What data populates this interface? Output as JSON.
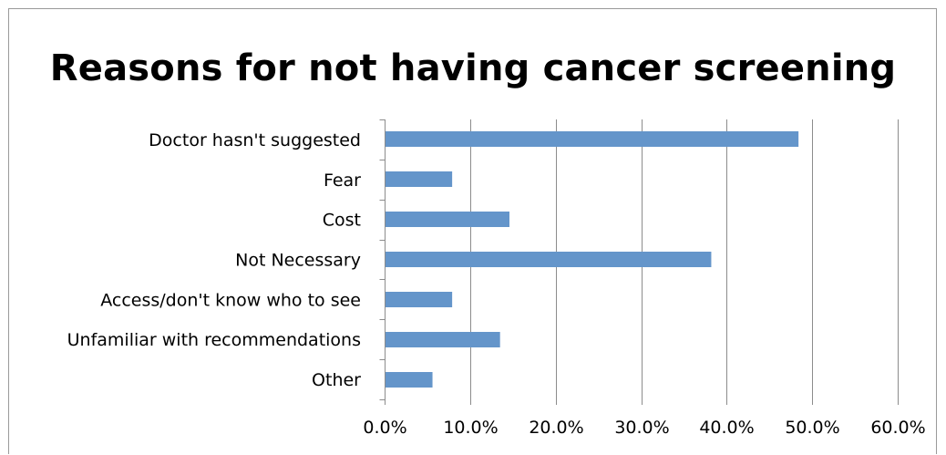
{
  "chart_data": {
    "type": "bar",
    "orientation": "horizontal",
    "title": "Reasons for not having cancer screening",
    "categories": [
      "Doctor hasn't suggested",
      "Fear",
      "Cost",
      "Not Necessary",
      "Access/don't know who to see",
      "Unfamiliar with recommendations",
      "Other"
    ],
    "values": [
      0.484,
      0.079,
      0.146,
      0.382,
      0.079,
      0.135,
      0.056
    ],
    "xlim": [
      0,
      0.6
    ],
    "x_ticks": [
      "0.0%",
      "10.0%",
      "20.0%",
      "30.0%",
      "40.0%",
      "50.0%",
      "60.0%"
    ],
    "grid": "vertical",
    "legend": "none",
    "bar_color": "#6495CA",
    "grid_color": "#8c8c8c"
  }
}
